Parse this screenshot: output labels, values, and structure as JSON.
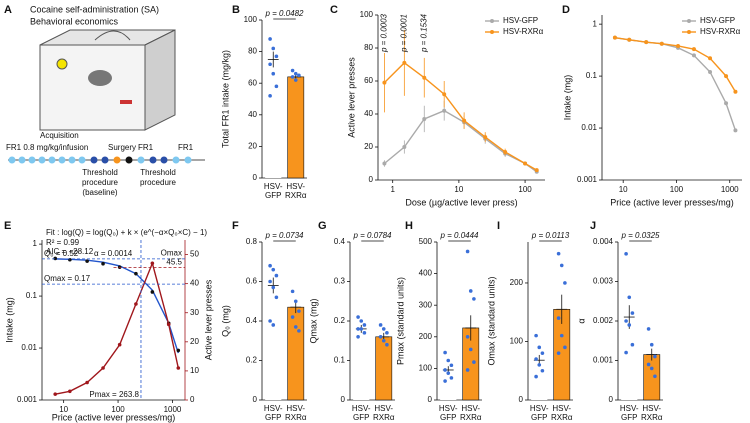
{
  "panel_a": {
    "letter": "A",
    "title": "Cocaine self-administration (SA)",
    "subtitle": "Behavioral economics",
    "acquisition": "Acquisition",
    "acquisition_dose": "FR1 0.8 mg/kg/infusion",
    "surgery": "Surgery",
    "fr1_a": "FR1",
    "fr1_b": "FR1",
    "threshold_1": [
      "Threshold",
      "procedure",
      "(baseline)"
    ],
    "threshold_2": [
      "Threshold",
      "procedure"
    ]
  },
  "chart_data": [
    {
      "type": "bar",
      "label": "B",
      "ylabel": "Total FR1 intake (mg/kg)",
      "categories": [
        "HSV-GFP",
        "HSV-RXRα"
      ],
      "values": [
        75,
        64
      ],
      "errors": [
        5,
        2
      ],
      "colors": [
        "#ffffff",
        "#f7941d"
      ],
      "points": [
        [
          88,
          82,
          77,
          72,
          66,
          58,
          52
        ],
        [
          68,
          66,
          65,
          64,
          62
        ]
      ],
      "point_color": "#3a6fd8",
      "ylim": [
        0,
        100
      ],
      "yticks": [
        0,
        20,
        40,
        60,
        80,
        100
      ],
      "annotation": "p = 0.0482"
    },
    {
      "type": "line",
      "label": "C",
      "xlabel": "Dose (µg/active lever press)",
      "ylabel": "Active lever presses",
      "x": [
        0.75,
        1.5,
        3,
        6,
        12,
        25,
        50,
        100,
        150
      ],
      "xlog": true,
      "xlim": [
        0.6,
        200
      ],
      "xticks": [
        1,
        10,
        100
      ],
      "ylim": [
        0,
        100
      ],
      "yticks": [
        0,
        20,
        40,
        60,
        80,
        100
      ],
      "series": [
        {
          "name": "HSV-GFP",
          "color": "#aaaaaa",
          "values": [
            10,
            20,
            37,
            42,
            35,
            25,
            16,
            10,
            5
          ],
          "errors": [
            2,
            4,
            8,
            6,
            4,
            3,
            2,
            1,
            1
          ]
        },
        {
          "name": "HSV-RXRα",
          "color": "#f7941d",
          "values": [
            59,
            71,
            62,
            52,
            36,
            26,
            17,
            10,
            6
          ],
          "errors": [
            18,
            20,
            12,
            8,
            5,
            3,
            2,
            1,
            1
          ]
        }
      ],
      "pvalues": [
        "p = 0.0003",
        "p = 0.0001",
        "p = 0.1534"
      ],
      "legend": "upper right"
    },
    {
      "type": "line",
      "label": "D",
      "xlabel": "Price (active lever presses/mg)",
      "ylabel": "Intake (mg)",
      "x": [
        7,
        13,
        27,
        53,
        107,
        213,
        427,
        853,
        1280
      ],
      "xlog": true,
      "ylog": true,
      "xlim": [
        4,
        1700
      ],
      "xticks": [
        10,
        100,
        1000
      ],
      "ylim": [
        0.001,
        1.5
      ],
      "yticks": [
        0.001,
        0.01,
        0.1,
        1
      ],
      "series": [
        {
          "name": "HSV-GFP",
          "color": "#aaaaaa",
          "values": [
            0.55,
            0.5,
            0.45,
            0.42,
            0.35,
            0.25,
            0.12,
            0.03,
            0.009
          ]
        },
        {
          "name": "HSV-RXRα",
          "color": "#f7941d",
          "values": [
            0.55,
            0.5,
            0.45,
            0.42,
            0.38,
            0.33,
            0.22,
            0.1,
            0.05
          ]
        }
      ],
      "legend": "upper right"
    },
    {
      "type": "dual",
      "label": "E",
      "xlabel": "Price (active lever presses/mg)",
      "ylabel": "Intake (mg)",
      "y2label": "Active lever presses",
      "x": [
        7,
        13,
        27,
        53,
        107,
        213,
        427,
        853,
        1280
      ],
      "xlog": true,
      "ylog": true,
      "xlim": [
        4,
        1700
      ],
      "xticks": [
        10,
        100,
        1000
      ],
      "ylim": [
        0.001,
        1.2
      ],
      "yticks": [
        0.001,
        0.01,
        0.1,
        1
      ],
      "y2lim": [
        0,
        55
      ],
      "y2ticks": [
        0,
        10,
        20,
        30,
        40,
        50
      ],
      "series": [
        {
          "color": "#2255cc",
          "style": "line",
          "values": [
            0.52,
            0.51,
            0.49,
            0.45,
            0.38,
            0.27,
            0.13,
            0.03,
            0.008
          ]
        },
        {
          "color": "#111111",
          "style": "points",
          "values": [
            0.53,
            0.5,
            0.47,
            0.42,
            0.36,
            0.27,
            0.12,
            0.03,
            0.009
          ]
        },
        {
          "color": "#a0171c",
          "style": "line-points",
          "axis": "y2",
          "values": [
            2,
            3,
            6,
            11,
            19,
            33,
            47,
            26,
            11
          ]
        }
      ],
      "fit_text": "Fit : log(Q) = log(Q₀) + k × (e^(−α×Q₀×C) − 1)",
      "r2": "R² = 0.99",
      "aic": "AIC = −28.12",
      "alpha": "α = 0.0014",
      "refs": [
        {
          "label": "Q₀ = 0.52",
          "value": 0.52,
          "axis": "y"
        },
        {
          "label": "Qmax = 0.17",
          "value": 0.17,
          "axis": "y"
        },
        {
          "label": "Pmax = 263.8",
          "value": 263.8,
          "axis": "x"
        },
        {
          "label": "Omax",
          "value": 45.5,
          "axis": "y2"
        }
      ]
    },
    {
      "type": "bar",
      "label": "F",
      "ylabel": "Q₀ (mg)",
      "categories": [
        "HSV-GFP",
        "HSV-RXRα"
      ],
      "values": [
        0.58,
        0.47
      ],
      "errors": [
        0.04,
        0.03
      ],
      "colors": [
        "#ffffff",
        "#f7941d"
      ],
      "points": [
        [
          0.68,
          0.66,
          0.63,
          0.6,
          0.57,
          0.52,
          0.4,
          0.38
        ],
        [
          0.55,
          0.5,
          0.45,
          0.42,
          0.37,
          0.35
        ]
      ],
      "point_color": "#3a6fd8",
      "ylim": [
        0,
        0.8
      ],
      "yticks": [
        0,
        0.2,
        0.4,
        0.6,
        0.8
      ],
      "annotation": "p = 0.0734"
    },
    {
      "type": "bar",
      "label": "G",
      "ylabel": "Qmax (mg)",
      "categories": [
        "HSV-GFP",
        "HSV-RXRα"
      ],
      "values": [
        0.18,
        0.16
      ],
      "errors": [
        0.01,
        0.01
      ],
      "colors": [
        "#ffffff",
        "#f7941d"
      ],
      "points": [
        [
          0.21,
          0.2,
          0.19,
          0.18,
          0.18,
          0.17,
          0.16
        ],
        [
          0.19,
          0.18,
          0.17,
          0.16,
          0.15,
          0.14
        ]
      ],
      "point_color": "#3a6fd8",
      "ylim": [
        0,
        0.4
      ],
      "yticks": [
        0,
        0.1,
        0.2,
        0.3,
        0.4
      ],
      "annotation": "p = 0.0784"
    },
    {
      "type": "bar",
      "label": "H",
      "ylabel": "Pmax (standard units)",
      "categories": [
        "HSV-GFP",
        "HSV-RXRα"
      ],
      "values": [
        95,
        228
      ],
      "errors": [
        12,
        40
      ],
      "colors": [
        "#ffffff",
        "#f7941d"
      ],
      "points": [
        [
          150,
          125,
          110,
          95,
          85,
          70,
          60
        ],
        [
          470,
          345,
          320,
          200,
          160,
          120,
          95
        ]
      ],
      "point_color": "#3a6fd8",
      "ylim": [
        0,
        500
      ],
      "yticks": [
        0,
        100,
        200,
        300,
        400,
        500
      ],
      "annotation": "p = 0.0444"
    },
    {
      "type": "bar",
      "label": "I",
      "ylabel": "Omax (standard units)",
      "categories": [
        "HSV-GFP",
        "HSV-RXRα"
      ],
      "values": [
        68,
        155
      ],
      "errors": [
        9,
        25
      ],
      "colors": [
        "#ffffff",
        "#f7941d"
      ],
      "points": [
        [
          110,
          90,
          80,
          70,
          60,
          50,
          40
        ],
        [
          250,
          230,
          200,
          140,
          110,
          90,
          80
        ]
      ],
      "point_color": "#3a6fd8",
      "ylim": [
        0,
        270
      ],
      "yticks": [
        0,
        100,
        200
      ],
      "annotation": "p = 0.0113"
    },
    {
      "type": "bar",
      "label": "J",
      "ylabel": "α",
      "categories": [
        "HSV-GFP",
        "HSV-RXRα"
      ],
      "values": [
        0.0021,
        0.00115
      ],
      "errors": [
        0.0003,
        0.00015
      ],
      "colors": [
        "#ffffff",
        "#f7941d"
      ],
      "points": [
        [
          0.0037,
          0.0026,
          0.0022,
          0.002,
          0.0019,
          0.0014,
          0.0012
        ],
        [
          0.0018,
          0.0014,
          0.0011,
          0.0009,
          0.0008,
          0.0006
        ]
      ],
      "point_color": "#3a6fd8",
      "ylim": [
        0,
        0.004
      ],
      "yticks": [
        0,
        0.001,
        0.002,
        0.003,
        0.004
      ],
      "annotation": "p = 0.0325"
    }
  ]
}
